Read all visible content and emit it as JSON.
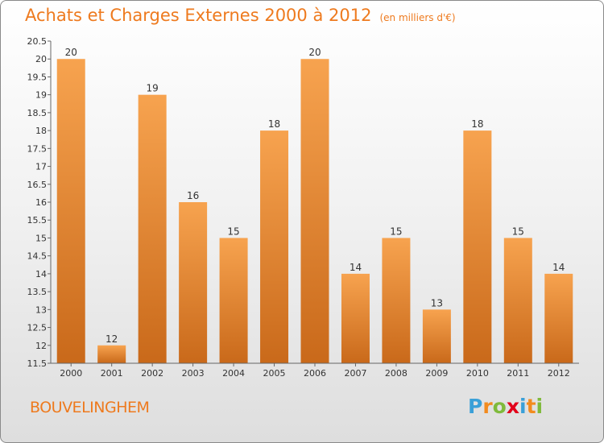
{
  "title": "Achats et Charges Externes 2000 à 2012",
  "unit": "(en milliers d'€)",
  "commune": "BOUVELINGHEM",
  "logo": {
    "letters": [
      "P",
      "r",
      "o",
      "x",
      "i",
      "t",
      "i"
    ],
    "colors": [
      "#3aa0d8",
      "#f28b1e",
      "#7fba3b",
      "#e2001a",
      "#3aa0d8",
      "#f28b1e",
      "#7fba3b"
    ]
  },
  "colors": {
    "bar_light": "#f7a34f",
    "bar_dark": "#c9691a",
    "accent": "#ee7a1e"
  },
  "chart_data": {
    "type": "bar",
    "categories": [
      "2000",
      "2001",
      "2002",
      "2003",
      "2004",
      "2005",
      "2006",
      "2007",
      "2008",
      "2009",
      "2010",
      "2011",
      "2012"
    ],
    "values": [
      20,
      12,
      19,
      16,
      15,
      18,
      20,
      14,
      15,
      13,
      18,
      15,
      14
    ],
    "data_labels": [
      "20",
      "12",
      "19",
      "16",
      "15",
      "18",
      "20",
      "14",
      "15",
      "13",
      "18",
      "15",
      "14"
    ],
    "ylim": [
      11.5,
      20.5
    ],
    "yticks": [
      "11.5",
      "12",
      "12.5",
      "13",
      "13.5",
      "14",
      "14.5",
      "15",
      "15.5",
      "16",
      "16.5",
      "17",
      "17.5",
      "18",
      "18.5",
      "19",
      "19.5",
      "20",
      "20.5"
    ],
    "xlabel": "",
    "ylabel": "",
    "grid": false,
    "legend": "none"
  }
}
